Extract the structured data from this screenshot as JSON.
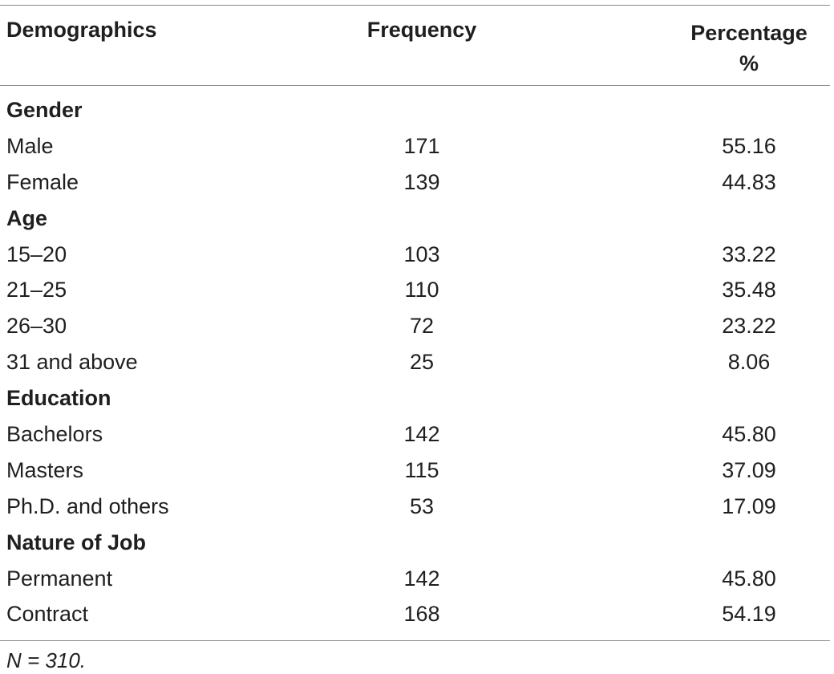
{
  "table": {
    "headers": {
      "col1": "Demographics",
      "col2": "Frequency",
      "col3_line1": "Percentage",
      "col3_line2": "%"
    },
    "rows": [
      {
        "type": "section",
        "label": "Gender",
        "frequency": "",
        "percentage": ""
      },
      {
        "type": "data",
        "label": "Male",
        "frequency": "171",
        "percentage": "55.16"
      },
      {
        "type": "data",
        "label": "Female",
        "frequency": "139",
        "percentage": "44.83"
      },
      {
        "type": "section",
        "label": "Age",
        "frequency": "",
        "percentage": ""
      },
      {
        "type": "data",
        "label": "15–20",
        "frequency": "103",
        "percentage": "33.22"
      },
      {
        "type": "data",
        "label": "21–25",
        "frequency": "110",
        "percentage": "35.48"
      },
      {
        "type": "data",
        "label": "26–30",
        "frequency": "72",
        "percentage": "23.22"
      },
      {
        "type": "data",
        "label": "31 and above",
        "frequency": "25",
        "percentage": "8.06"
      },
      {
        "type": "section",
        "label": "Education",
        "frequency": "",
        "percentage": ""
      },
      {
        "type": "data",
        "label": "Bachelors",
        "frequency": "142",
        "percentage": "45.80"
      },
      {
        "type": "data",
        "label": "Masters",
        "frequency": "115",
        "percentage": "37.09"
      },
      {
        "type": "data",
        "label": "Ph.D. and others",
        "frequency": "53",
        "percentage": "17.09"
      },
      {
        "type": "section",
        "label": "Nature of Job",
        "frequency": "",
        "percentage": ""
      },
      {
        "type": "data",
        "label": "Permanent",
        "frequency": "142",
        "percentage": "45.80"
      },
      {
        "type": "data",
        "label": "Contract",
        "frequency": "168",
        "percentage": "54.19"
      }
    ],
    "footnote": "N = 310."
  }
}
